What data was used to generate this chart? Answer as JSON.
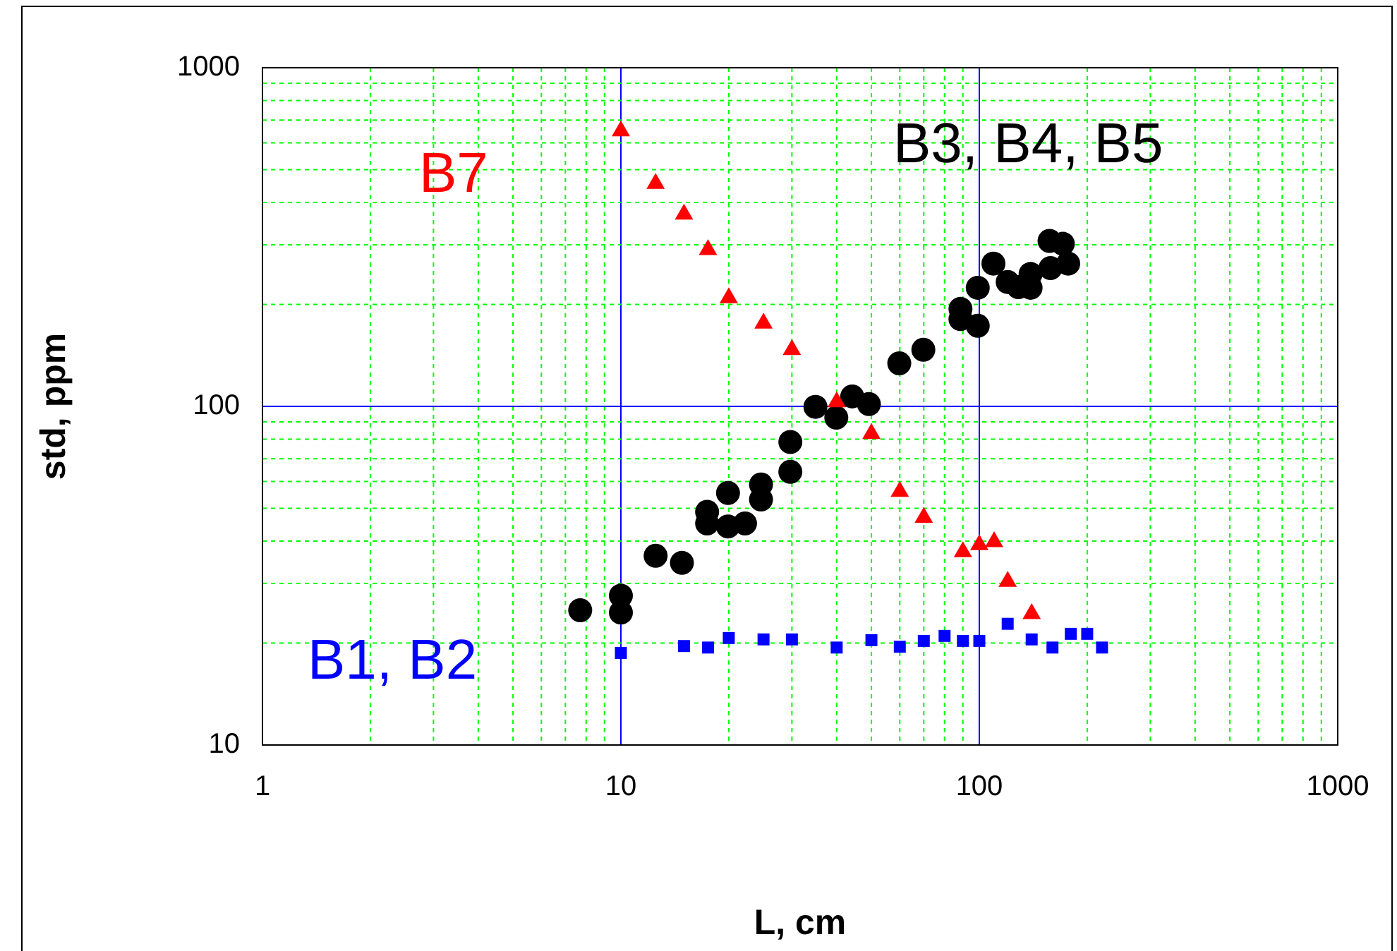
{
  "chart_data": {
    "type": "scatter",
    "xlabel": "L, cm",
    "ylabel": "std, ppm",
    "log": "xy",
    "grid": true,
    "legend": false,
    "xlim": [
      1,
      1000
    ],
    "ylim": [
      10,
      1000
    ],
    "xticks": [
      1,
      {
        "value": 2,
        "label": null
      },
      {
        "value": 3,
        "label": null
      },
      {
        "value": 4,
        "label": null
      },
      {
        "value": 5,
        "label": null
      },
      {
        "value": 6,
        "label": null
      },
      {
        "value": 7,
        "label": null
      },
      {
        "value": 8,
        "label": null
      },
      {
        "value": 9,
        "label": null
      },
      10,
      {
        "value": 20,
        "label": null
      },
      {
        "value": 30,
        "label": null
      },
      {
        "value": 40,
        "label": null
      },
      {
        "value": 50,
        "label": null
      },
      {
        "value": 60,
        "label": null
      },
      {
        "value": 70,
        "label": null
      },
      {
        "value": 80,
        "label": null
      },
      {
        "value": 90,
        "label": null
      },
      100,
      {
        "value": 200,
        "label": null
      },
      {
        "value": 300,
        "label": null
      },
      {
        "value": 400,
        "label": null
      },
      {
        "value": 500,
        "label": null
      },
      {
        "value": 600,
        "label": null
      },
      {
        "value": 700,
        "label": null
      },
      {
        "value": 800,
        "label": null
      },
      {
        "value": 900,
        "label": null
      },
      1000
    ],
    "yticks": [
      10,
      {
        "value": 20,
        "label": null
      },
      {
        "value": 30,
        "label": null
      },
      {
        "value": 40,
        "label": null
      },
      {
        "value": 50,
        "label": null
      },
      {
        "value": 60,
        "label": null
      },
      {
        "value": 70,
        "label": null
      },
      {
        "value": 80,
        "label": null
      },
      {
        "value": 90,
        "label": null
      },
      100,
      {
        "value": 200,
        "label": null
      },
      {
        "value": 300,
        "label": null
      },
      {
        "value": 400,
        "label": null
      },
      {
        "value": 500,
        "label": null
      },
      {
        "value": 600,
        "label": null
      },
      {
        "value": 700,
        "label": null
      },
      {
        "value": 800,
        "label": null
      },
      {
        "value": 900,
        "label": null
      },
      1000
    ],
    "series": [
      {
        "name": "B1, B2",
        "color": "#0000ff",
        "marker": "square",
        "x": [
          10,
          15,
          17.5,
          20,
          25,
          30,
          40,
          50,
          60,
          70,
          80,
          90,
          100,
          120,
          140,
          160,
          180,
          200,
          220
        ],
        "values": [
          18.7,
          19.6,
          19.4,
          20.7,
          20.5,
          20.5,
          19.4,
          20.4,
          19.5,
          20.3,
          21,
          20.3,
          20.3,
          22.8,
          20.5,
          19.4,
          21.3,
          21.3,
          19.4
        ]
      },
      {
        "name": "B3, B4, B5",
        "color": "#000000",
        "marker": "circle",
        "x": [
          7.7,
          10,
          10,
          12.5,
          14.8,
          17.4,
          17.4,
          19.9,
          19.9,
          22.2,
          24.6,
          24.6,
          29.7,
          29.7,
          34.9,
          39.9,
          44.2,
          49.2,
          59.8,
          69.8,
          88.6,
          88.6,
          99,
          99,
          109.5,
          120,
          128.5,
          139,
          139,
          158,
          157,
          171,
          177
        ],
        "values": [
          25,
          27.6,
          24.6,
          36.2,
          34.5,
          48.8,
          45.1,
          55.5,
          44.2,
          45.1,
          58.8,
          53.1,
          78.5,
          64.1,
          99.7,
          92.6,
          107,
          101.6,
          134,
          147,
          194,
          181,
          173,
          224,
          264,
          233,
          225,
          224,
          246,
          256,
          308,
          302,
          264
        ]
      },
      {
        "name": "B7",
        "color": "#ff0000",
        "marker": "triangle",
        "x": [
          10,
          12.5,
          15,
          17.5,
          20,
          25,
          30,
          40,
          50,
          60,
          70,
          90,
          100,
          110,
          120,
          140
        ],
        "values": [
          650,
          455,
          369,
          290,
          209,
          176,
          147,
          103,
          83,
          56,
          47,
          37.2,
          39,
          39.8,
          30.4,
          24.4
        ]
      }
    ]
  }
}
